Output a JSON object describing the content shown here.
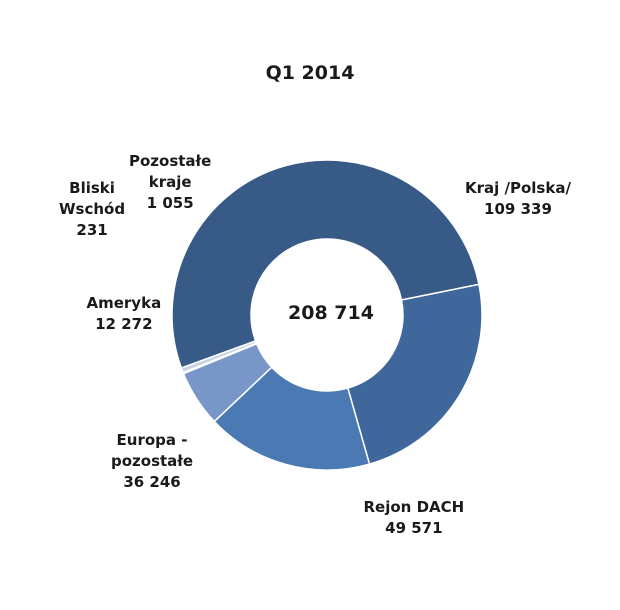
{
  "chart_data": {
    "type": "pie",
    "title": "Q1 2014",
    "center_label": "208 714",
    "slices": [
      {
        "name_lines": [
          "Kraj /Polska/"
        ],
        "value_label": "109 339",
        "value": 109339,
        "color": "#375a87"
      },
      {
        "name_lines": [
          "Rejon DACH"
        ],
        "value_label": "49 571",
        "value": 49571,
        "color": "#3f679c"
      },
      {
        "name_lines": [
          "Europa -",
          "pozostałe"
        ],
        "value_label": "36 246",
        "value": 36246,
        "color": "#4a79b3"
      },
      {
        "name_lines": [
          "Ameryka"
        ],
        "value_label": "12 272",
        "value": 12272,
        "color": "#7896c8"
      },
      {
        "name_lines": [
          "Bliski",
          "Wschód"
        ],
        "value_label": "231",
        "value": 231,
        "color": "#a9bde0"
      },
      {
        "name_lines": [
          "Pozostałe",
          "kraje"
        ],
        "value_label": "1 055",
        "value": 1055,
        "color": "#c9d3e6"
      }
    ]
  }
}
